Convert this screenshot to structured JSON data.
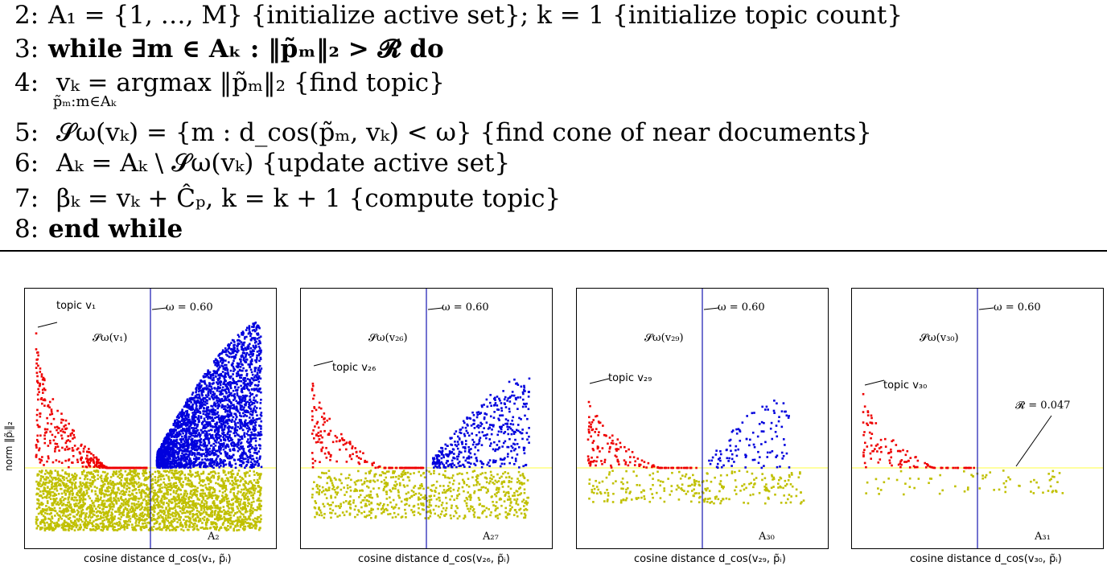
{
  "algorithm": {
    "lines": [
      {
        "num": "2:",
        "text": "A₁ = {1, …, M} {initialize active set};        k = 1 {initialize topic count}"
      },
      {
        "num": "3:",
        "text": "while ∃m ∈ Aₖ : ‖p̃ₘ‖₂ > 𝓡 do"
      },
      {
        "num": "4:",
        "text": "    vₖ = argmax ‖p̃ₘ‖₂ {find topic}"
      },
      {
        "num": "",
        "text": "          p̃ₘ:m∈Aₖ"
      },
      {
        "num": "5:",
        "text": "    𝓢ω(vₖ) = {m : d_cos(p̃ₘ, vₖ) < ω} {find cone of near documents}"
      },
      {
        "num": "6:",
        "text": "    Aₖ = Aₖ \\ 𝓢ω(vₖ) {update active set}"
      },
      {
        "num": "7:",
        "text": "    βₖ = vₖ + Ĉₚ, k = k + 1 {compute topic}"
      },
      {
        "num": "8:",
        "text": "end while"
      }
    ]
  },
  "figure": {
    "ylabel": "norm ‖p̃ᵢ‖₂",
    "panels": [
      {
        "topic_label": "topic v₁",
        "omega_label": "ω = 0.60",
        "cone_label": "𝓢ω(v₁)",
        "set_label": "A₂",
        "xlabel": "cosine distance d_cos(v₁, p̃ᵢ)",
        "r_label": ""
      },
      {
        "topic_label": "topic v₂₆",
        "omega_label": "ω = 0.60",
        "cone_label": "𝓢ω(v₂₆)",
        "set_label": "A₂₇",
        "xlabel": "cosine distance d_cos(v₂₆, p̃ᵢ)",
        "r_label": ""
      },
      {
        "topic_label": "topic v₂₉",
        "omega_label": "ω = 0.60",
        "cone_label": "𝓢ω(v₂₉)",
        "set_label": "A₃₀",
        "xlabel": "cosine distance d_cos(v₂₉, p̃ᵢ)",
        "r_label": ""
      },
      {
        "topic_label": "topic v₃₀",
        "omega_label": "ω = 0.60",
        "cone_label": "𝓢ω(v₃₀)",
        "set_label": "A₃₁",
        "xlabel": "cosine distance d_cos(v₃₀, p̃ᵢ)",
        "r_label": "𝓡 = 0.047"
      }
    ],
    "colors": {
      "cone": "#ee0000",
      "active": "#0000dd",
      "below": "#c0c000",
      "omega_line": "#0000aa",
      "threshold_line": "#ffff66"
    }
  }
}
